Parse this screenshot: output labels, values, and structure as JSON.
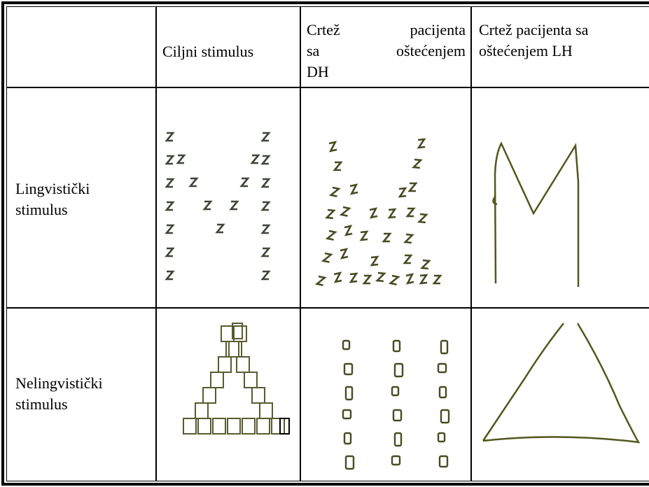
{
  "table": {
    "header": [
      {
        "lines": [
          "Ciljni stimulus"
        ]
      },
      {
        "lines": [
          "Crtež pacijenta",
          "sa oštećenjem",
          "DH"
        ]
      },
      {
        "lines": [
          "Crtež pacijenta sa",
          "oštećenjem LH"
        ]
      }
    ],
    "rows": [
      {
        "label": [
          "Lingvistički",
          "stimulus"
        ]
      },
      {
        "label": [
          "Nelingvistički",
          "stimulus"
        ]
      }
    ]
  }
}
